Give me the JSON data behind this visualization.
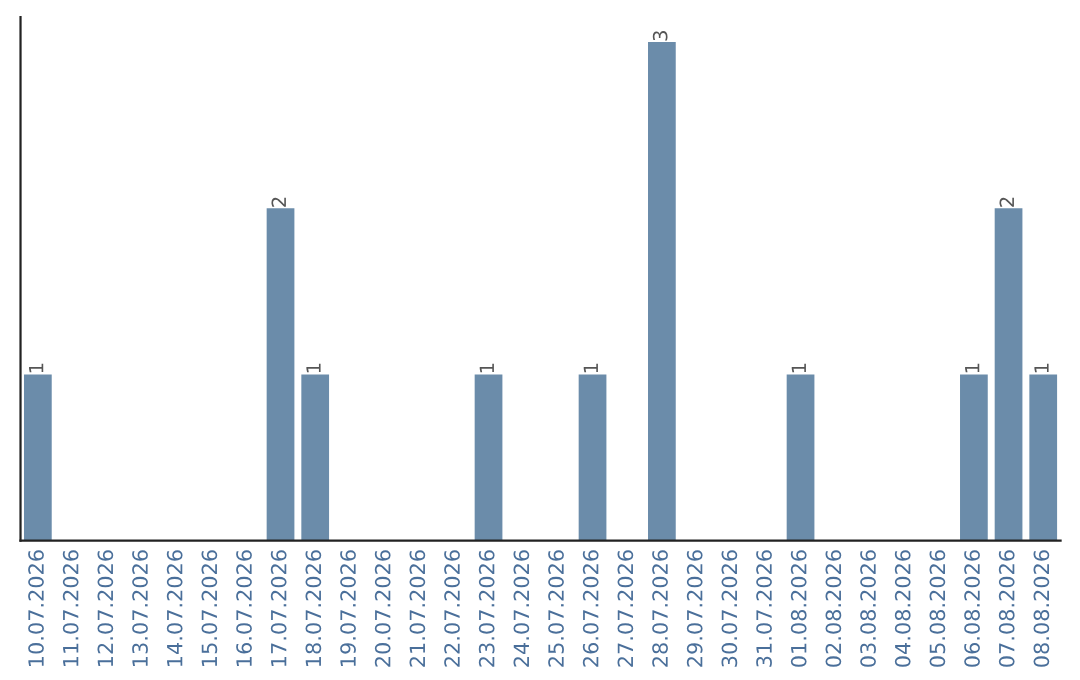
{
  "chart_data": {
    "type": "bar",
    "categories": [
      "10.07.2026",
      "11.07.2026",
      "12.07.2026",
      "13.07.2026",
      "14.07.2026",
      "15.07.2026",
      "16.07.2026",
      "17.07.2026",
      "18.07.2026",
      "19.07.2026",
      "20.07.2026",
      "21.07.2026",
      "22.07.2026",
      "23.07.2026",
      "24.07.2026",
      "25.07.2026",
      "26.07.2026",
      "27.07.2026",
      "28.07.2026",
      "29.07.2026",
      "30.07.2026",
      "31.07.2026",
      "01.08.2026",
      "02.08.2026",
      "03.08.2026",
      "04.08.2026",
      "05.08.2026",
      "06.08.2026",
      "07.08.2026",
      "08.08.2026"
    ],
    "values": [
      1,
      0,
      0,
      0,
      0,
      0,
      0,
      2,
      1,
      0,
      0,
      0,
      0,
      1,
      0,
      0,
      1,
      0,
      3,
      0,
      0,
      0,
      1,
      0,
      0,
      0,
      0,
      1,
      2,
      1
    ],
    "value_labels": [
      "1",
      null,
      null,
      null,
      null,
      null,
      null,
      "2",
      "1",
      null,
      null,
      null,
      null,
      "1",
      null,
      null,
      "1",
      null,
      "3",
      null,
      null,
      null,
      "1",
      null,
      null,
      null,
      null,
      "1",
      "2",
      "1"
    ],
    "color": "#6b8caa",
    "ylim": [
      0,
      3.15
    ],
    "tick_labels": "x",
    "grid": false,
    "legend": false
  }
}
